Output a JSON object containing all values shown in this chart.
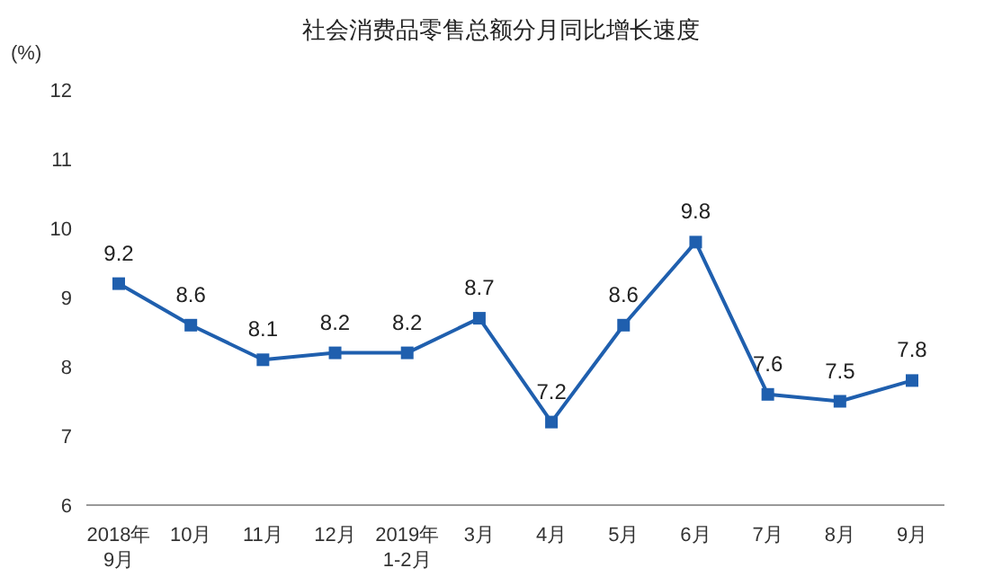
{
  "chart_data": {
    "type": "line",
    "title": "社会消费品零售总额分月同比增长速度",
    "ylabel": "(%)",
    "categories": [
      "2018年\n9月",
      "10月",
      "11月",
      "12月",
      "2019年\n1-2月",
      "3月",
      "4月",
      "5月",
      "6月",
      "7月",
      "8月",
      "9月"
    ],
    "series": [
      {
        "color": "#1f5fae",
        "values": [
          9.2,
          8.6,
          8.1,
          8.2,
          8.2,
          8.7,
          7.2,
          8.6,
          9.8,
          7.6,
          7.5,
          7.8
        ]
      }
    ],
    "ylim": [
      6,
      12
    ],
    "yticks": [
      6,
      7,
      8,
      9,
      10,
      11,
      12
    ],
    "marker": "square",
    "line_style": "solid",
    "data_labels": true
  }
}
